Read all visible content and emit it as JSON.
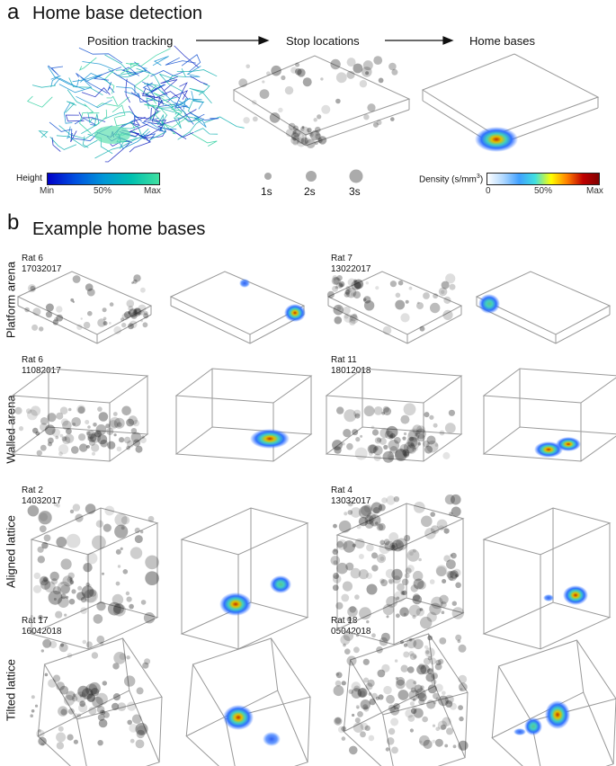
{
  "panel_a": {
    "letter": "a",
    "title": "Home base detection",
    "steps": [
      "Position tracking",
      "Stop locations",
      "Home bases"
    ],
    "height_legend": {
      "label": "Height",
      "min": "Min",
      "mid": "50%",
      "max": "Max",
      "colors": [
        "#0000c8",
        "#0050e0",
        "#0096d8",
        "#00c0b0",
        "#40e0a0"
      ]
    },
    "stop_legend": [
      "1s",
      "2s",
      "3s"
    ],
    "density_legend": {
      "label_pre": "Density (s/mm",
      "label_sup": "3",
      "label_post": ")",
      "min": "0",
      "mid": "50%",
      "max": "Max",
      "colors": [
        "#ffffff",
        "#b0d8ff",
        "#40a0ff",
        "#40e0e0",
        "#ffff00",
        "#ff8000",
        "#c00000",
        "#800000"
      ]
    }
  },
  "panel_b": {
    "letter": "b",
    "title": "Example home bases",
    "rows": [
      {
        "label": "Platform arena",
        "left": [
          "Rat 6",
          "17032017"
        ],
        "right": [
          "Rat 7",
          "13022017"
        ]
      },
      {
        "label": "Walled arena",
        "left": [
          "Rat 6",
          "11082017"
        ],
        "right": [
          "Rat 11",
          "18012018"
        ]
      },
      {
        "label": "Aligned lattice",
        "left": [
          "Rat 2",
          "14032017"
        ],
        "right": [
          "Rat 4",
          "13032017"
        ]
      },
      {
        "label": "Tilted lattice",
        "left": [
          "Rat 17",
          "16042018"
        ],
        "right": [
          "Rat 18",
          "05042018"
        ]
      }
    ]
  }
}
